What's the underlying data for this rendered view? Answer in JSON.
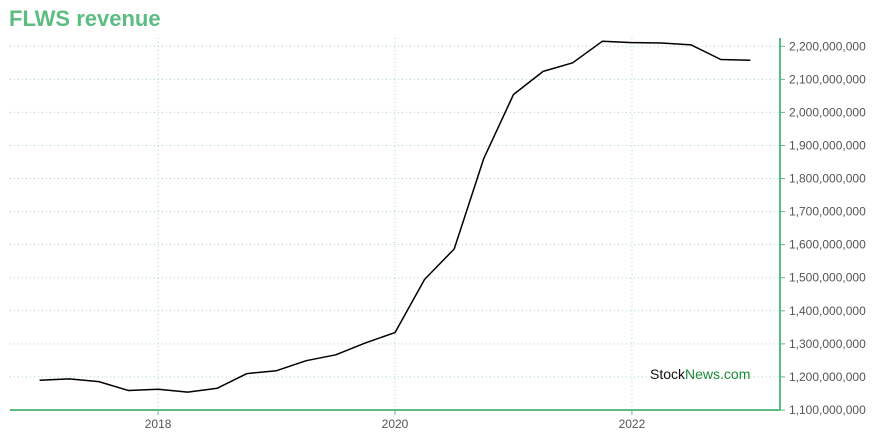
{
  "title": "FLWS revenue",
  "watermark": {
    "part1": "Stock",
    "part2": "News",
    "part3": ".com"
  },
  "colors": {
    "accent": "#5bbd82",
    "line": "#000000",
    "grid": "#a8d8bd",
    "watermark_dark": "#111111",
    "watermark_green": "#1a8a3a"
  },
  "chart_data": {
    "type": "line",
    "title": "FLWS revenue",
    "xlabel": "",
    "ylabel": "",
    "x_ticks": [
      "2018",
      "2020",
      "2022"
    ],
    "y_ticks": [
      1100000000,
      1200000000,
      1300000000,
      1400000000,
      1500000000,
      1600000000,
      1700000000,
      1800000000,
      1900000000,
      2000000000,
      2100000000,
      2200000000
    ],
    "y_tick_labels": [
      "1,100,000,000",
      "1,200,000,000",
      "1,300,000,000",
      "1,400,000,000",
      "1,500,000,000",
      "1,600,000,000",
      "1,700,000,000",
      "1,800,000,000",
      "1,900,000,000",
      "2,000,000,000",
      "2,100,000,000",
      "2,200,000,000"
    ],
    "xlim": [
      2016.75,
      2023.25
    ],
    "ylim": [
      1100000000,
      2225000000
    ],
    "grid": true,
    "series": [
      {
        "x": [
          2017.0,
          2017.25,
          2017.5,
          2017.75,
          2018.0,
          2018.25,
          2018.5,
          2018.75,
          2019.0,
          2019.25,
          2019.5,
          2019.75,
          2020.0,
          2020.25,
          2020.5,
          2020.75,
          2021.0,
          2021.25,
          2021.5,
          2021.75,
          2022.0,
          2022.25,
          2022.5,
          2022.75,
          2023.0
        ],
        "values": [
          1190000000,
          1194000000,
          1186000000,
          1159000000,
          1163000000,
          1154000000,
          1166000000,
          1210000000,
          1219000000,
          1249000000,
          1267000000,
          1303000000,
          1334000000,
          1495000000,
          1587000000,
          1861000000,
          2054000000,
          2124000000,
          2150000000,
          2215000000,
          2211000000,
          2210000000,
          2204000000,
          2160000000,
          2158000000
        ]
      }
    ]
  }
}
